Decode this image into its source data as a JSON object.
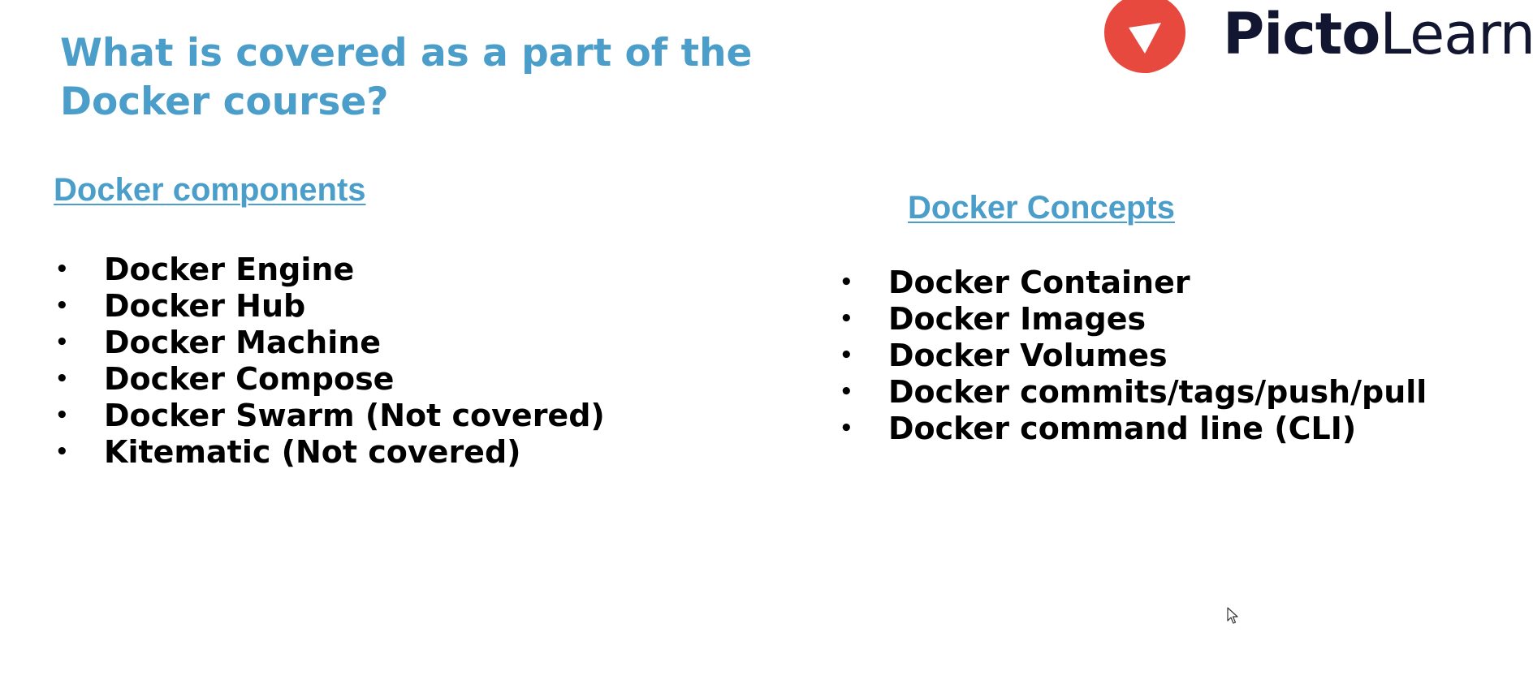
{
  "slide": {
    "title": "What is covered as a part of the Docker course?"
  },
  "logo": {
    "icon": "pictolearn-logo-icon",
    "name_strong": "Picto",
    "name_light": "Learn",
    "accent_color": "#e8493f",
    "text_color": "#131630"
  },
  "components": {
    "heading": "Docker components",
    "items": [
      "Docker Engine",
      "Docker Hub",
      "Docker Machine",
      "Docker Compose",
      "Docker Swarm (Not covered)",
      "Kitematic (Not covered)"
    ]
  },
  "concepts": {
    "heading": "Docker Concepts",
    "items": [
      "Docker Container",
      "Docker Images",
      "Docker Volumes",
      "Docker commits/tags/push/pull",
      "Docker command line (CLI)"
    ]
  },
  "bullet_symbol": "•",
  "colors": {
    "title": "#4a9ec9",
    "body_text": "#000000",
    "background": "#ffffff"
  }
}
